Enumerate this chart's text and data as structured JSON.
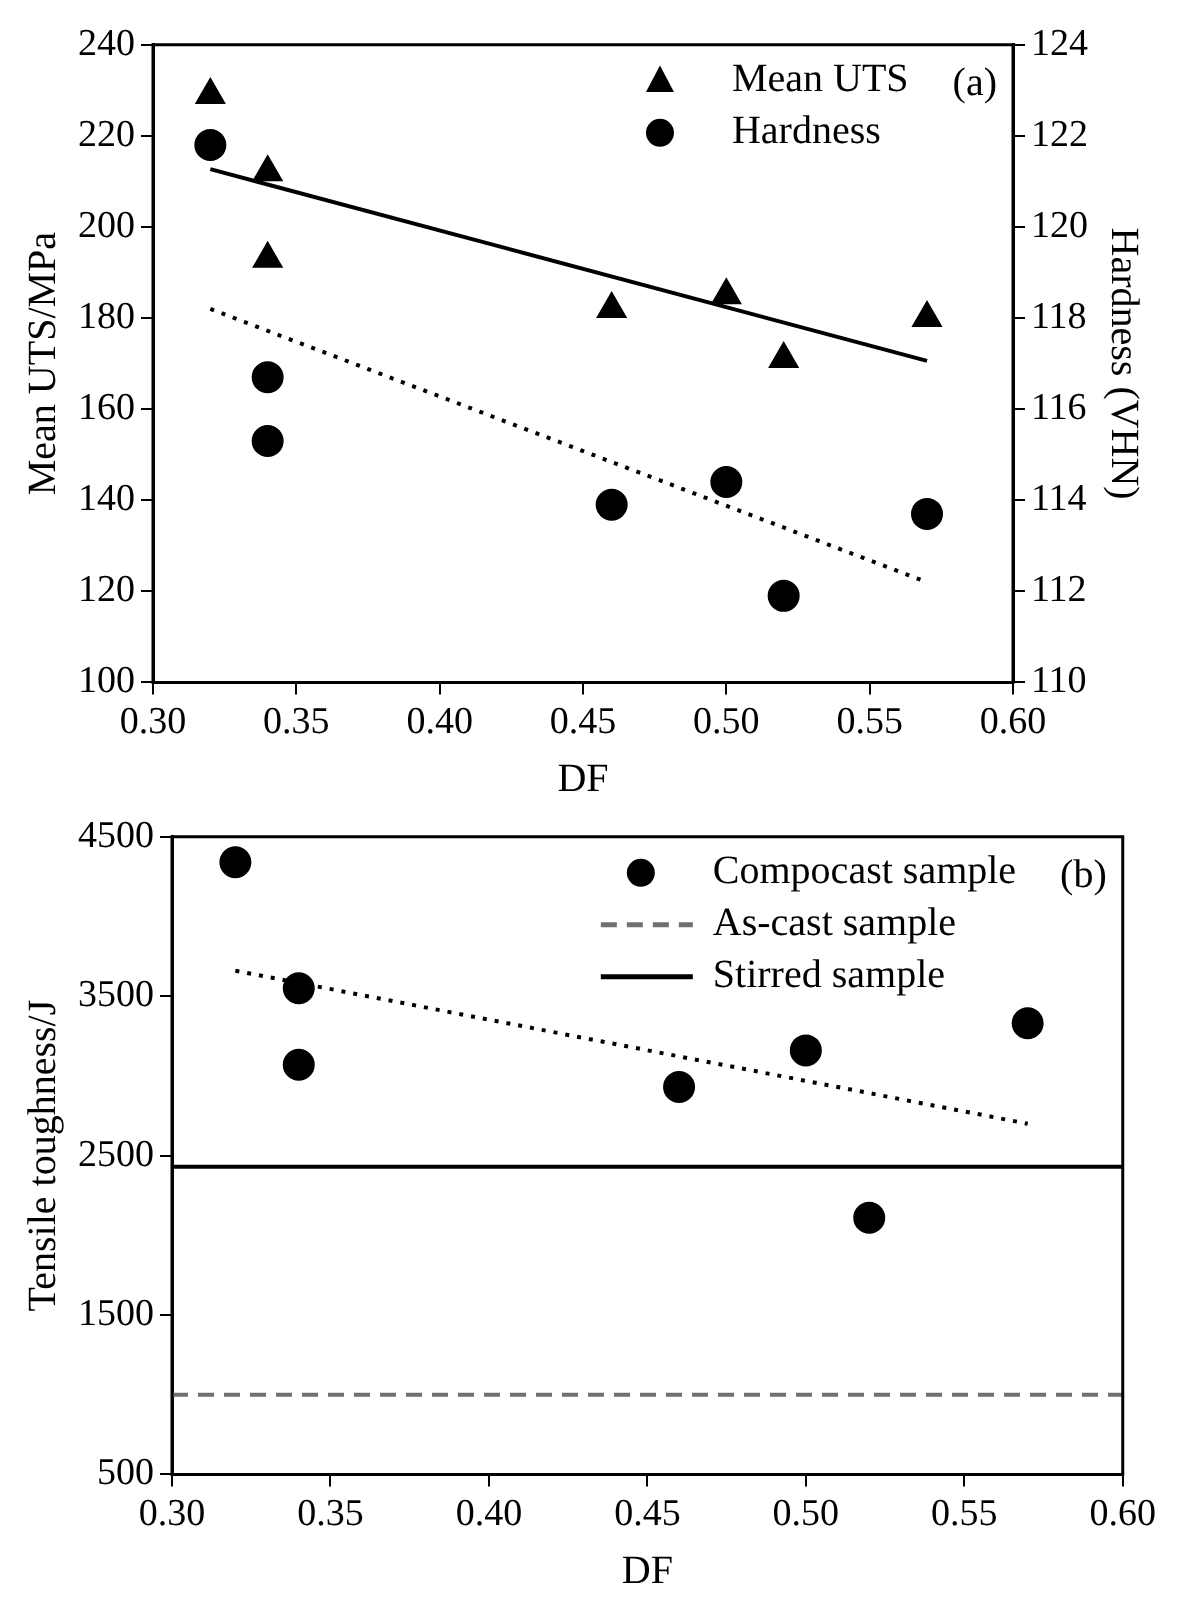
{
  "chart_data": [
    {
      "type": "scatter",
      "xlabel": "DF",
      "ylabel": "Mean UTS/MPa",
      "y2label": "Hardness (VHN)",
      "annotations": [
        "(a)"
      ],
      "xlim": [
        0.3,
        0.6
      ],
      "xticks": [
        {
          "value": 0.3,
          "label": "0.30"
        },
        {
          "value": 0.35,
          "label": "0.35"
        },
        {
          "value": 0.4,
          "label": "0.40"
        },
        {
          "value": 0.45,
          "label": "0.45"
        },
        {
          "value": 0.5,
          "label": "0.50"
        },
        {
          "value": 0.55,
          "label": "0.55"
        },
        {
          "value": 0.6,
          "label": "0.60"
        }
      ],
      "ylim": [
        100,
        240
      ],
      "yticks": [
        100,
        120,
        140,
        160,
        180,
        200,
        220,
        240
      ],
      "y2lim": [
        110,
        124
      ],
      "y2ticks": [
        110,
        112,
        114,
        116,
        118,
        120,
        122,
        124
      ],
      "grid": false,
      "legend": "top right",
      "x": [
        0.32,
        0.34,
        0.34,
        0.46,
        0.5,
        0.52,
        0.57
      ],
      "series": [
        {
          "name": "Mean UTS",
          "color": "#000000",
          "marker": "triangle",
          "values": [
            229,
            212,
            193,
            182,
            185,
            171,
            180
          ]
        },
        {
          "name": "Hardness",
          "color": "#000000",
          "marker": "circle",
          "axis": "y2",
          "values": [
            121.8,
            116.7,
            115.3,
            113.9,
            114.4,
            111.9,
            113.7
          ]
        },
        {
          "type": "line",
          "color": "#000000",
          "line_style": "solid",
          "marker": "none",
          "x": [
            0.32,
            0.57
          ],
          "values": [
            212.7,
            170.6
          ]
        },
        {
          "type": "line",
          "color": "#000000",
          "line_style": "dotted",
          "marker": "none",
          "axis": "y2",
          "x": [
            0.32,
            0.57
          ],
          "values": [
            118.2,
            112.2
          ]
        }
      ]
    },
    {
      "type": "scatter",
      "xlabel": "DF",
      "ylabel": "Tensile toughness/J",
      "annotations": [
        "(b)"
      ],
      "xlim": [
        0.3,
        0.6
      ],
      "xticks": [
        {
          "value": 0.3,
          "label": "0.30"
        },
        {
          "value": 0.35,
          "label": "0.35"
        },
        {
          "value": 0.4,
          "label": "0.40"
        },
        {
          "value": 0.45,
          "label": "0.45"
        },
        {
          "value": 0.5,
          "label": "0.50"
        },
        {
          "value": 0.55,
          "label": "0.55"
        },
        {
          "value": 0.6,
          "label": "0.60"
        }
      ],
      "ylim": [
        500,
        4500
      ],
      "yticks": [
        500,
        1500,
        2500,
        3500,
        4500
      ],
      "grid": false,
      "legend": "top right",
      "x": [
        0.32,
        0.34,
        0.34,
        0.46,
        0.5,
        0.52,
        0.57
      ],
      "series": [
        {
          "name": "Compocast sample",
          "color": "#000000",
          "marker": "circle",
          "values": [
            4340,
            3550,
            3070,
            2930,
            3160,
            2110,
            3330
          ]
        },
        {
          "name": "As-cast sample",
          "type": "line",
          "color": "#707070",
          "line_style": "dashed",
          "marker": "none",
          "x": [
            0.3,
            0.6
          ],
          "values": [
            1000,
            1000
          ]
        },
        {
          "name": "Stirred sample",
          "type": "line",
          "color": "#000000",
          "line_style": "solid",
          "marker": "none",
          "x": [
            0.3,
            0.6
          ],
          "values": [
            2430,
            2430
          ]
        },
        {
          "type": "line",
          "color": "#000000",
          "line_style": "dotted",
          "marker": "none",
          "x": [
            0.32,
            0.57
          ],
          "values": [
            3660,
            2700
          ]
        }
      ]
    }
  ]
}
